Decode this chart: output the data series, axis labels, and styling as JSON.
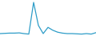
{
  "x": [
    0,
    1,
    2,
    3,
    4,
    5,
    6,
    7,
    8,
    9,
    10,
    11,
    12,
    13,
    14,
    15,
    16,
    17,
    18,
    19,
    20
  ],
  "y": [
    5,
    5.5,
    6,
    6,
    6.5,
    5,
    4,
    70,
    22,
    5,
    18,
    12,
    8,
    6,
    5,
    5,
    4.5,
    4,
    5,
    4,
    7
  ],
  "line_color": "#2e9dc8",
  "linewidth": 0.9,
  "background_color": "#ffffff",
  "ylim_min": 0,
  "ylim_max": 75
}
